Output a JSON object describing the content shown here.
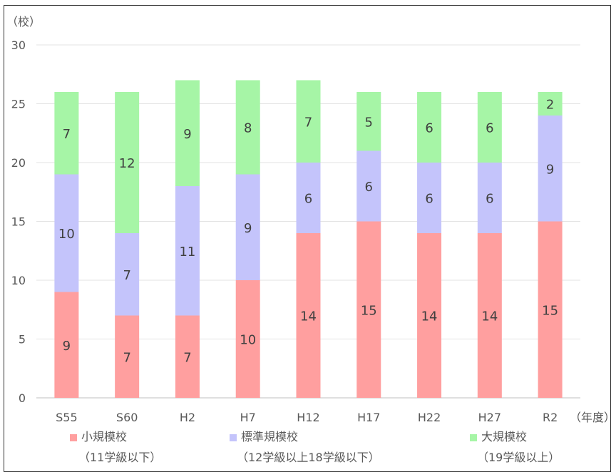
{
  "chart_data": {
    "type": "bar",
    "stacked": true,
    "unit_label": "（校）",
    "x_unit_label": "（年度）",
    "categories": [
      "S55",
      "S60",
      "H2",
      "H7",
      "H12",
      "H17",
      "H22",
      "H27",
      "R2"
    ],
    "ylim": [
      0,
      30
    ],
    "yticks": [
      0,
      5,
      10,
      15,
      20,
      25,
      30
    ],
    "grid": true,
    "series": [
      {
        "name": "小規模校",
        "sub": "（11学級以下）",
        "color": "#ff9f9f",
        "values": [
          9,
          7,
          7,
          10,
          14,
          15,
          14,
          14,
          15
        ]
      },
      {
        "name": "標準規模校",
        "sub": "（12学級以上18学級以下）",
        "color": "#c4c4fb",
        "values": [
          10,
          7,
          11,
          9,
          6,
          6,
          6,
          6,
          9
        ]
      },
      {
        "name": "大規模校",
        "sub": "（19学級以上）",
        "color": "#a6f5a6",
        "values": [
          7,
          12,
          9,
          8,
          7,
          5,
          6,
          6,
          2
        ]
      }
    ],
    "legend_position": "bottom"
  }
}
